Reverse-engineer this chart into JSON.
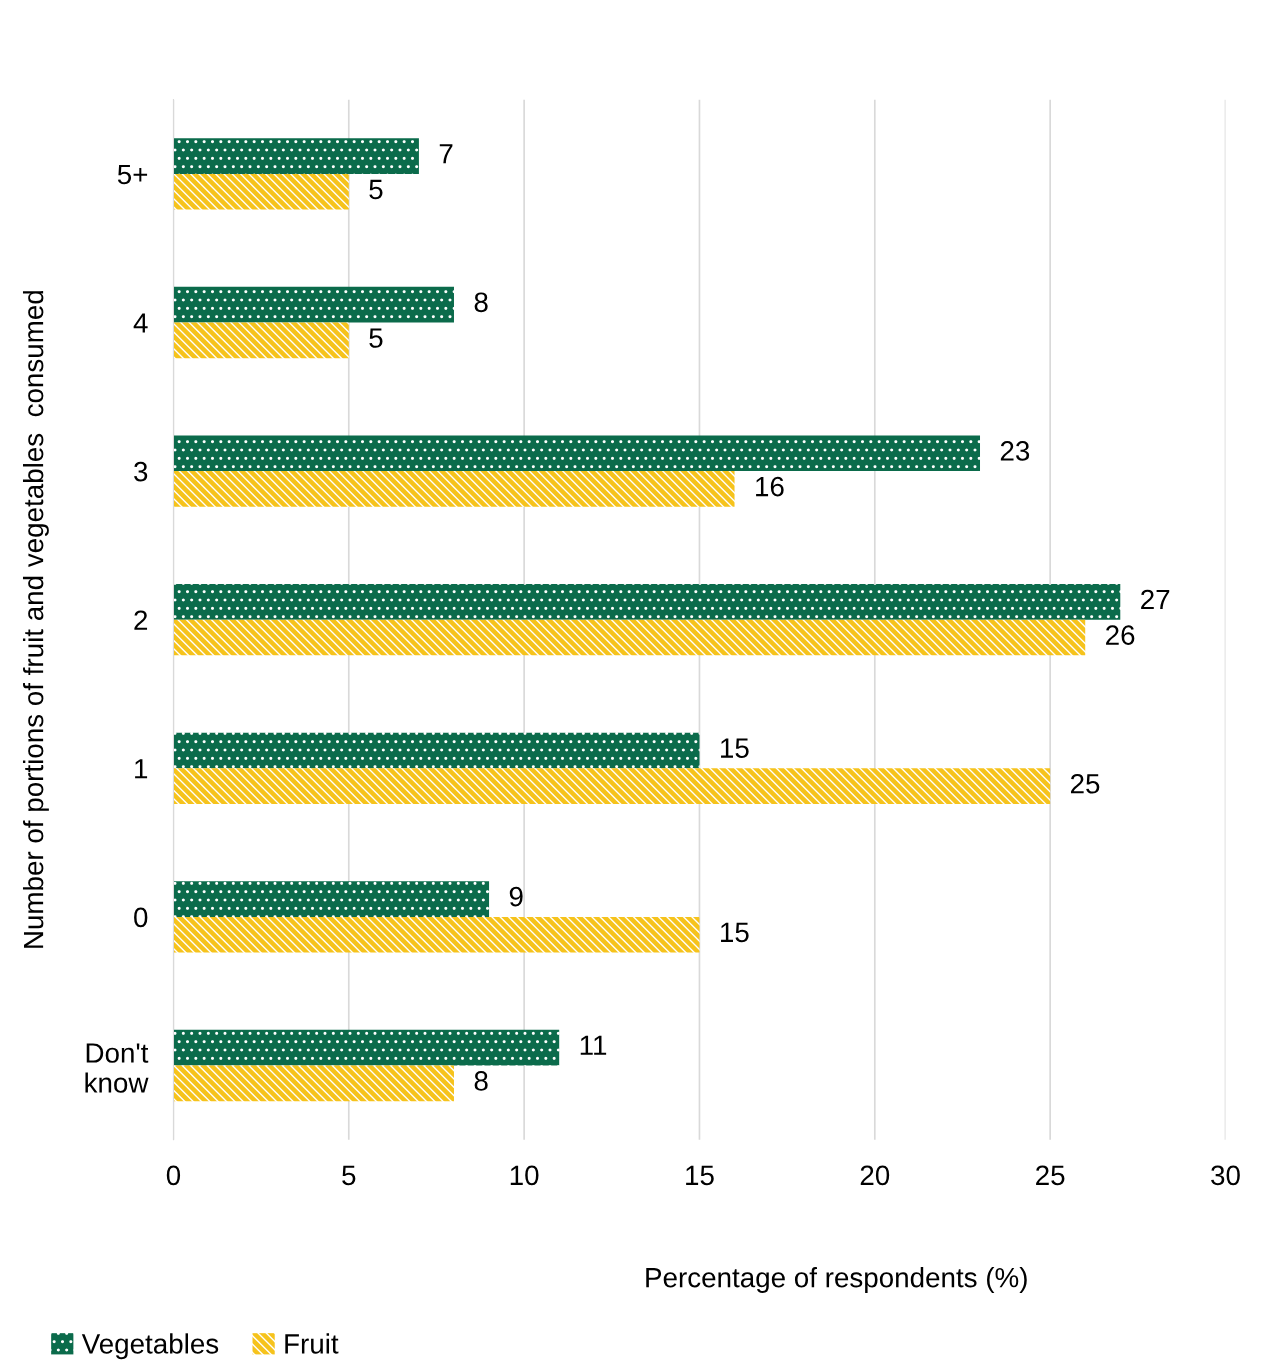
{
  "chart_data": {
    "type": "bar",
    "orientation": "horizontal",
    "categories": [
      "5+",
      "4",
      "3",
      "2",
      "1",
      "0",
      "Don't\nknow"
    ],
    "series": [
      {
        "name": "Vegetables",
        "color": "#0b6b4b",
        "values": [
          7,
          8,
          23,
          27,
          15,
          9,
          11
        ]
      },
      {
        "name": "Fruit",
        "color": "#f6c31c",
        "values": [
          5,
          5,
          16,
          26,
          25,
          15,
          8
        ]
      }
    ],
    "xlabel": "Percentage of respondents (%)",
    "ylabel": "Number of portions of fruit and vegetables  consumed",
    "xlim": [
      0,
      30
    ],
    "xticks": [
      0,
      5,
      10,
      15,
      20,
      25,
      30
    ],
    "grid": "x",
    "legend": "bottom left",
    "data_labels": true
  }
}
